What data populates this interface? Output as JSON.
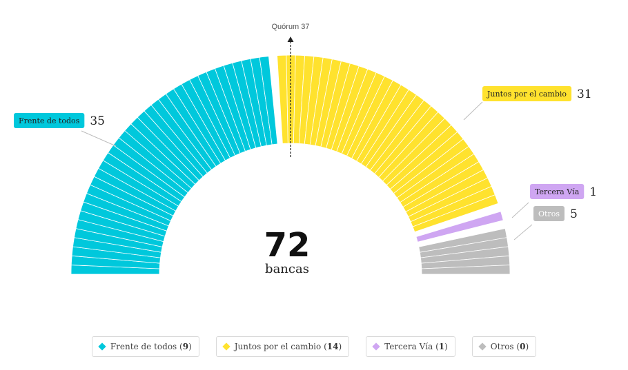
{
  "chart_data": {
    "type": "parliament",
    "total_seats": 72,
    "center_value": "72",
    "center_label": "bancas",
    "quorum_label": "Quórum 37",
    "parties": [
      {
        "name": "Frente de todos",
        "seats": 35,
        "color": "#00c8dc",
        "legend_count": 9,
        "label_side": "left"
      },
      {
        "name": "Juntos por el cambio",
        "seats": 31,
        "color": "#ffe22e",
        "legend_count": 14,
        "label_side": "right"
      },
      {
        "name": "Tercera Vía",
        "seats": 1,
        "color": "#cfa6f2",
        "legend_count": 1,
        "label_side": "right"
      },
      {
        "name": "Otros",
        "seats": 5,
        "color": "#bdbdbd",
        "legend_count": 0,
        "label_side": "right"
      }
    ]
  }
}
